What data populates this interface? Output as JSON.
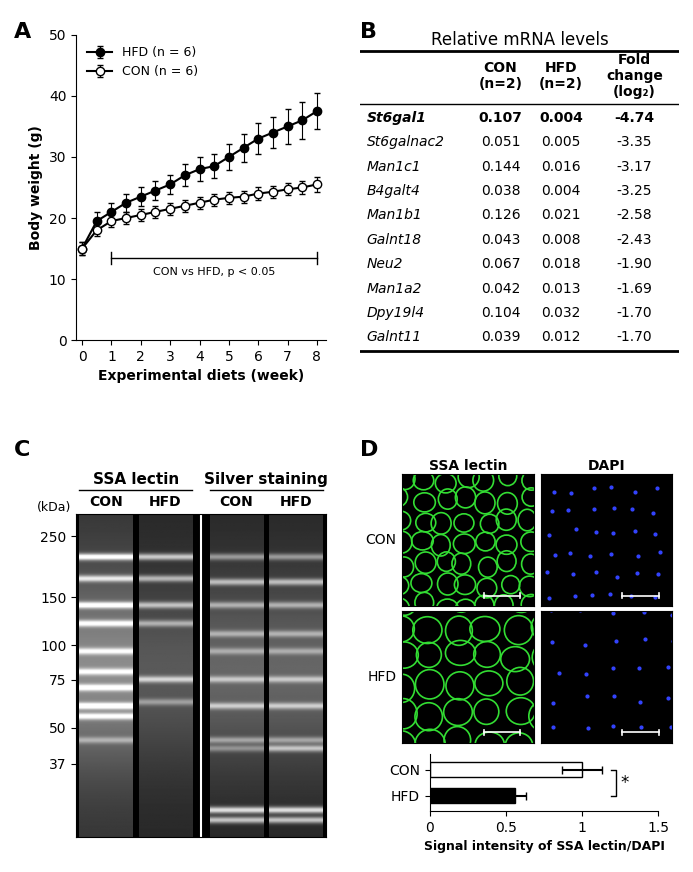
{
  "chart_data": [
    {
      "panel": "A",
      "type": "line",
      "x": [
        0,
        0.5,
        1,
        1.5,
        2,
        2.5,
        3,
        3.5,
        4,
        4.5,
        5,
        5.5,
        6,
        6.5,
        7,
        7.5,
        8
      ],
      "xlabel": "Experimental diets (week)",
      "ylabel": "Body weight (g)",
      "xlim": [
        -0.2,
        8.3
      ],
      "ylim": [
        0,
        50
      ],
      "xticks": [
        0,
        1,
        2,
        3,
        4,
        5,
        6,
        7,
        8
      ],
      "yticks": [
        0,
        10,
        20,
        30,
        40,
        50
      ],
      "legend": "upper left",
      "series": [
        {
          "name": "HFD (n = 6)",
          "color": "#000000",
          "marker": "filled_circle",
          "values": [
            15,
            19.5,
            21,
            22.5,
            23.5,
            24.5,
            25.5,
            27,
            28,
            28.5,
            30,
            31.5,
            33,
            34,
            35,
            36,
            37.5
          ],
          "errors": [
            1,
            1.5,
            1.5,
            1.5,
            1.5,
            1.5,
            1.5,
            1.8,
            2,
            2,
            2.2,
            2.3,
            2.5,
            2.5,
            2.8,
            3,
            3
          ]
        },
        {
          "name": "CON (n = 6)",
          "color": "#000000",
          "marker": "open_circle",
          "values": [
            15,
            18,
            19.5,
            20,
            20.5,
            21,
            21.5,
            22,
            22.5,
            23,
            23.3,
            23.5,
            24,
            24.3,
            24.7,
            25,
            25.5
          ],
          "errors": [
            1,
            1,
            1,
            1,
            1,
            1,
            1,
            1,
            1,
            1,
            1,
            1,
            1,
            1,
            1,
            1,
            1.2
          ]
        }
      ],
      "annotation": {
        "text": "CON vs HFD, p < 0.05",
        "x": [
          1,
          8
        ]
      }
    },
    {
      "type": "bar",
      "orientation": "horizontal",
      "categories": [
        "CON",
        "HFD"
      ],
      "values": [
        1.0,
        0.56
      ],
      "errors": [
        0.13,
        0.07
      ],
      "colors": [
        "#ffffff",
        "#000000"
      ],
      "xlabel": "Signal intensity of SSA lectin/DAPI",
      "xlim": [
        0,
        1.5
      ],
      "xticks": [
        0,
        0.5,
        1,
        1.5
      ],
      "annotation": "*"
    }
  ],
  "table": {
    "panel": "B",
    "title": "Relative mRNA levels",
    "columns": [
      "CON\n(n=2)",
      "HFD\n(n=2)",
      "Fold\nchange\n(log₂)"
    ],
    "rows": [
      [
        "St6gal1",
        "0.107",
        "0.004",
        "-4.74"
      ],
      [
        "St6galnac2",
        "0.051",
        "0.005",
        "-3.35"
      ],
      [
        "Man1c1",
        "0.144",
        "0.016",
        "-3.17"
      ],
      [
        "B4galt4",
        "0.038",
        "0.004",
        "-3.25"
      ],
      [
        "Man1b1",
        "0.126",
        "0.021",
        "-2.58"
      ],
      [
        "Galnt18",
        "0.043",
        "0.008",
        "-2.43"
      ],
      [
        "Neu2",
        "0.067",
        "0.018",
        "-1.90"
      ],
      [
        "Man1a2",
        "0.042",
        "0.013",
        "-1.69"
      ],
      [
        "Dpy19l4",
        "0.104",
        "0.032",
        "-1.70"
      ],
      [
        "Galnt11",
        "0.039",
        "0.012",
        "-1.70"
      ]
    ]
  },
  "blot": {
    "panel": "C",
    "groups": [
      {
        "name": "SSA lectin",
        "lanes": [
          "CON",
          "HFD"
        ]
      },
      {
        "name": "Silver staining",
        "lanes": [
          "CON",
          "HFD"
        ]
      }
    ],
    "unit": "(kDa)",
    "markers": [
      250,
      150,
      100,
      75,
      50,
      37
    ]
  },
  "micrographs": {
    "panel": "D",
    "columns": [
      "SSA lectin",
      "DAPI"
    ],
    "rows": [
      "CON",
      "HFD"
    ]
  }
}
